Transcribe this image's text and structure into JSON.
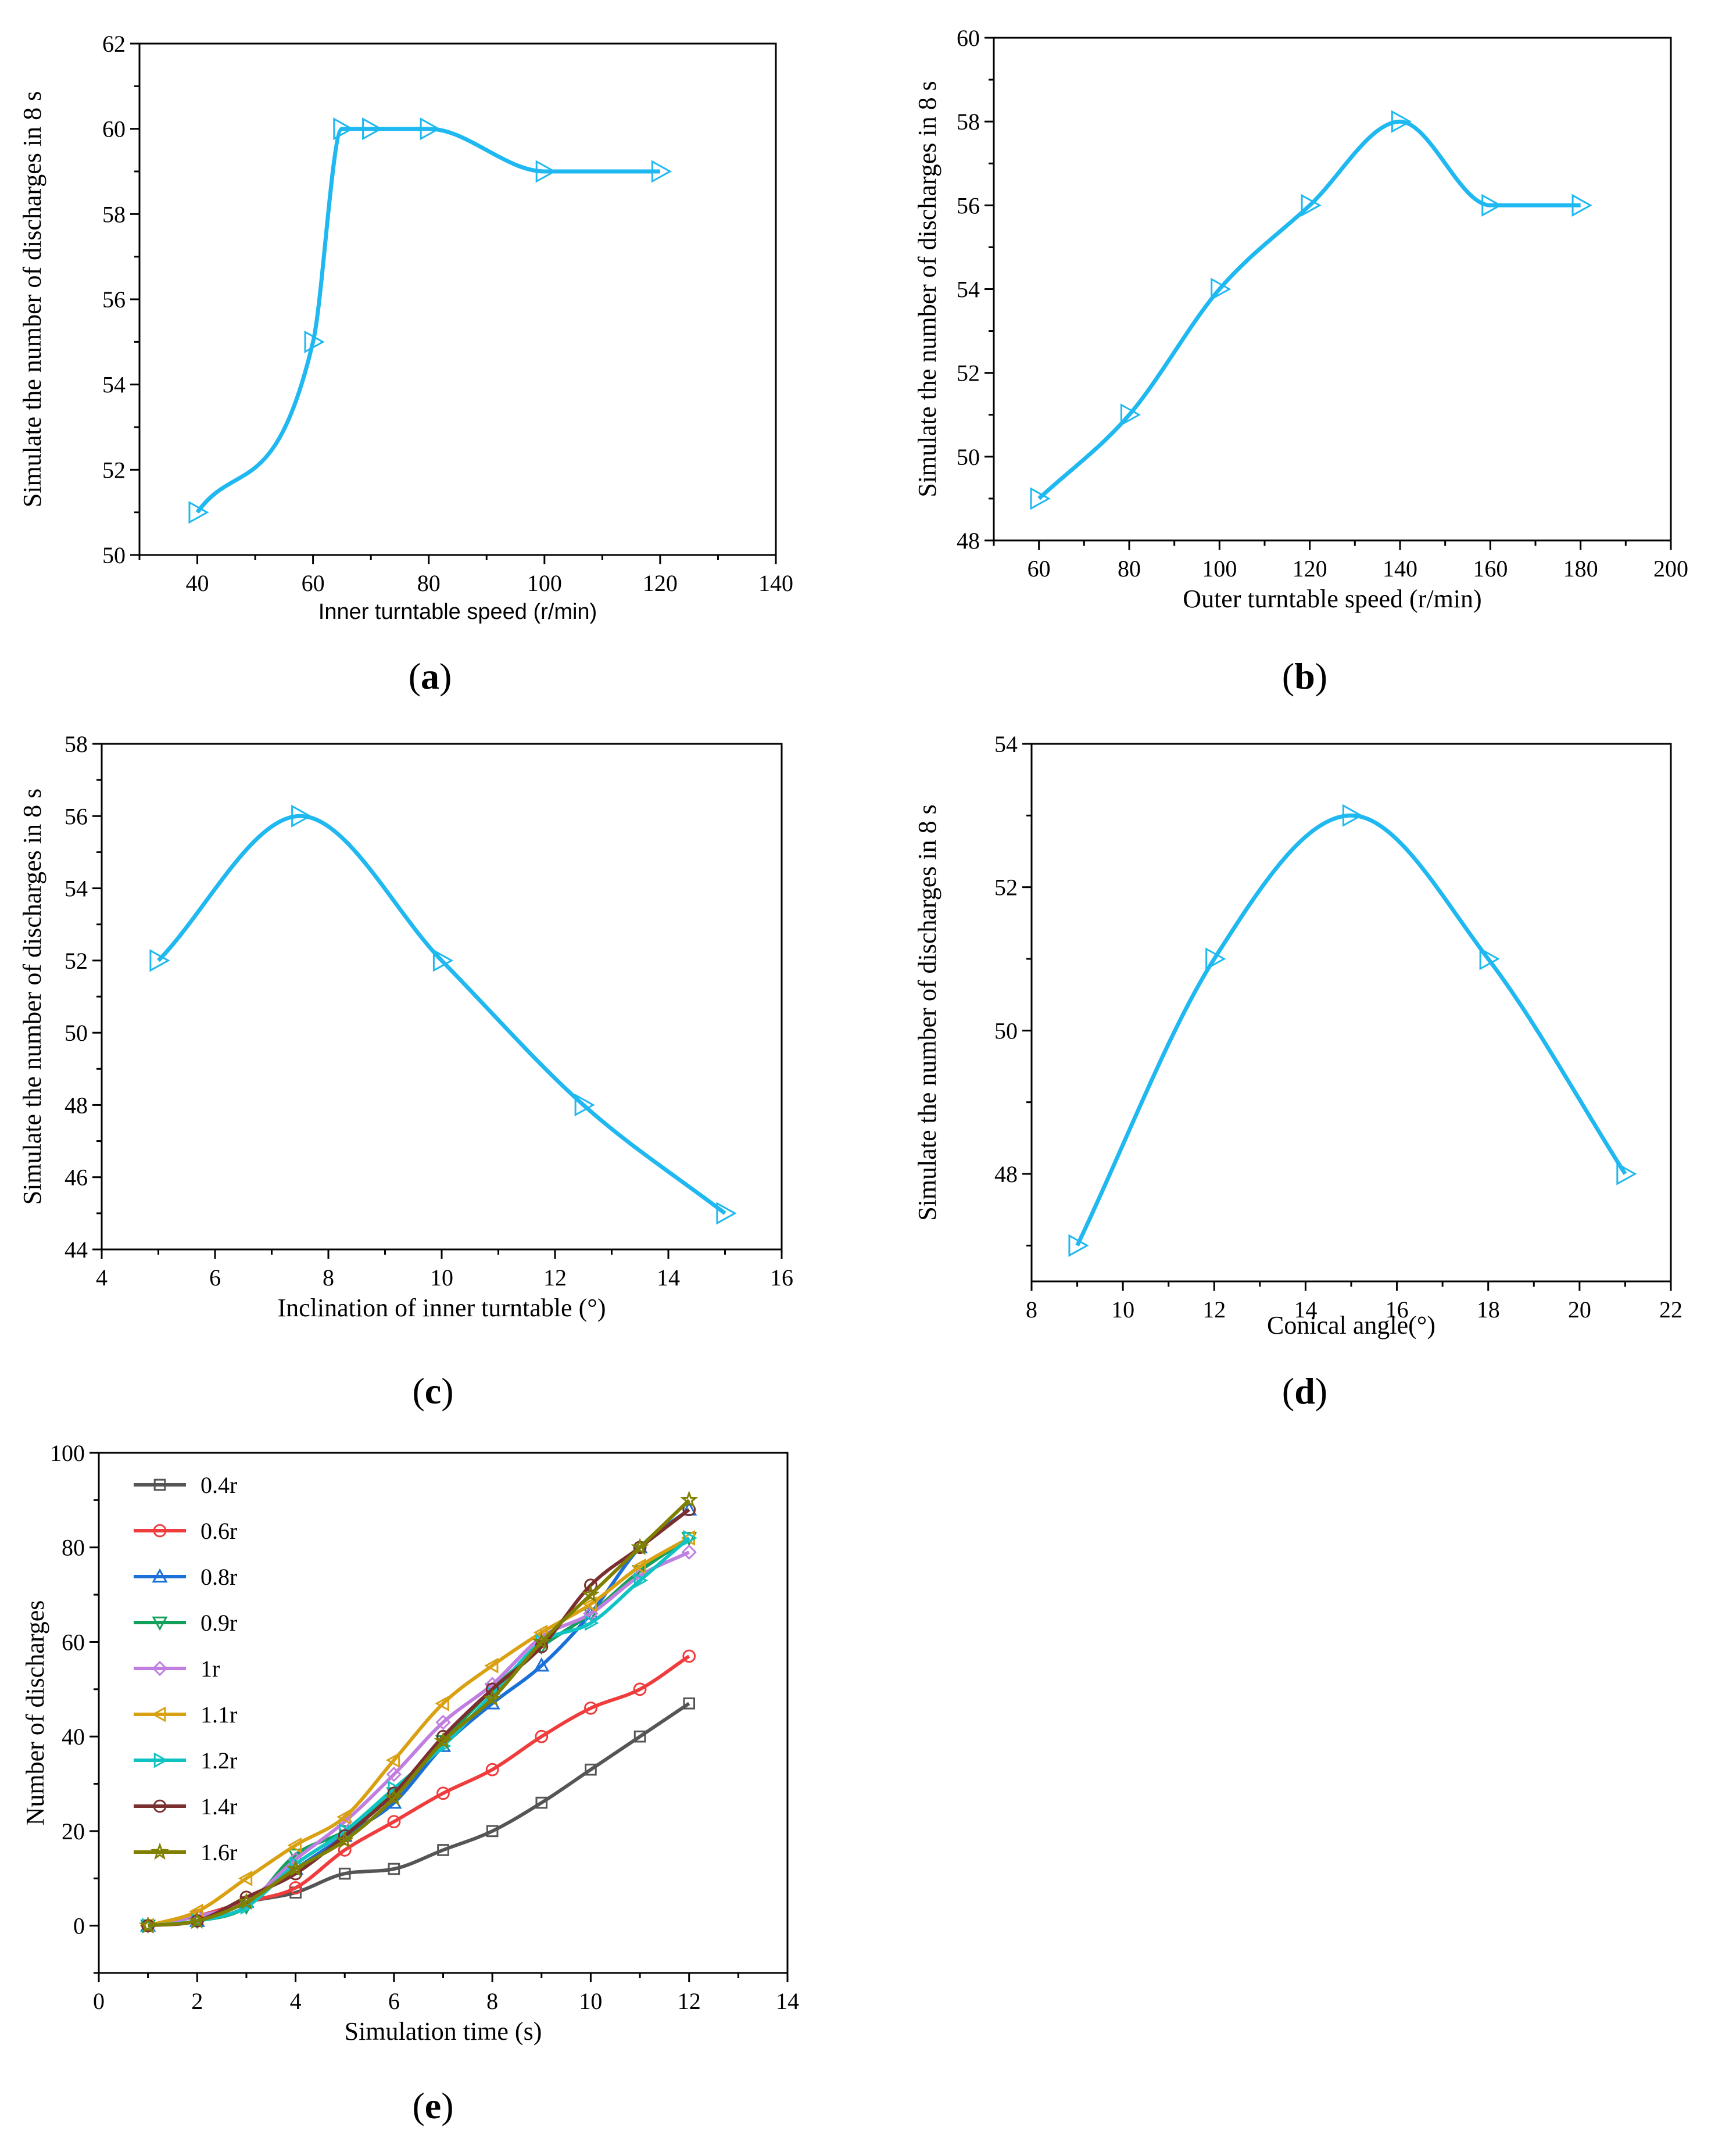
{
  "chart_data": [
    {
      "id": "a",
      "type": "line",
      "panel_label": "a",
      "xlabel": "Inner turntable speed (r/min)",
      "ylabel": "Simulate the number of discharges in 8 s",
      "xlim": [
        30,
        140
      ],
      "ylim": [
        50,
        62
      ],
      "xticks": [
        40,
        60,
        80,
        100,
        120,
        140
      ],
      "yticks": [
        50,
        52,
        54,
        56,
        58,
        60,
        62
      ],
      "grid": false,
      "color": "#1fb8f0",
      "marker": "triangle-right",
      "x": [
        40,
        60,
        65,
        70,
        80,
        100,
        120
      ],
      "y": [
        51,
        55,
        60,
        60,
        60,
        59,
        59
      ]
    },
    {
      "id": "b",
      "type": "line",
      "panel_label": "b",
      "xlabel": "Outer turntable speed (r/min)",
      "ylabel": "Simulate the number of discharges in 8 s",
      "xlim": [
        50,
        200
      ],
      "ylim": [
        48,
        60
      ],
      "xticks": [
        60,
        80,
        100,
        120,
        140,
        160,
        180,
        200
      ],
      "yticks": [
        48,
        50,
        52,
        54,
        56,
        58,
        60
      ],
      "grid": false,
      "color": "#1fb8f0",
      "marker": "triangle-right",
      "x": [
        60,
        80,
        100,
        120,
        140,
        160,
        180
      ],
      "y": [
        49,
        51,
        54,
        56,
        58,
        56,
        56
      ]
    },
    {
      "id": "c",
      "type": "line",
      "panel_label": "c",
      "xlabel": "Inclination of inner turntable (°)",
      "ylabel": "Simulate the number of discharges in 8 s",
      "xlim": [
        4,
        16
      ],
      "ylim": [
        44,
        58
      ],
      "xticks": [
        4,
        6,
        8,
        10,
        12,
        14,
        16
      ],
      "yticks": [
        44,
        46,
        48,
        50,
        52,
        54,
        56,
        58
      ],
      "grid": false,
      "color": "#1fb8f0",
      "marker": "triangle-right",
      "x": [
        5,
        7.5,
        10,
        12.5,
        15
      ],
      "y": [
        52,
        56,
        52,
        48,
        45
      ]
    },
    {
      "id": "d",
      "type": "line",
      "panel_label": "d",
      "xlabel": "Conical angle(°)",
      "ylabel": "Simulate the number of discharges in 8 s",
      "xlim": [
        8,
        22
      ],
      "ylim": [
        46.5,
        54
      ],
      "xticks": [
        8,
        10,
        12,
        14,
        16,
        18,
        20,
        22
      ],
      "yticks": [
        48,
        50,
        52,
        54
      ],
      "grid": false,
      "color": "#1fb8f0",
      "marker": "triangle-right",
      "x": [
        9,
        12,
        15,
        18,
        21
      ],
      "y": [
        47,
        51,
        53,
        51,
        48
      ]
    },
    {
      "id": "e",
      "type": "line",
      "panel_label": "e",
      "xlabel": "Simulation time (s)",
      "ylabel": "Number of discharges",
      "xlim": [
        0,
        14
      ],
      "ylim": [
        -10,
        100
      ],
      "xticks": [
        0,
        2,
        4,
        6,
        8,
        10,
        12,
        14
      ],
      "yticks": [
        0,
        20,
        40,
        60,
        80,
        100
      ],
      "grid": false,
      "legend": "top-left",
      "x": [
        1,
        2,
        3,
        4,
        5,
        6,
        7,
        8,
        9,
        10,
        11,
        12
      ],
      "series": [
        {
          "name": "0.4r",
          "color": "#555555",
          "marker": "square",
          "values": [
            0,
            2,
            5,
            7,
            11,
            12,
            16,
            20,
            26,
            33,
            40,
            47
          ]
        },
        {
          "name": "0.6r",
          "color": "#f03c3c",
          "marker": "circle",
          "values": [
            0,
            2,
            5,
            8,
            16,
            22,
            28,
            33,
            40,
            46,
            50,
            57
          ]
        },
        {
          "name": "0.8r",
          "color": "#1a6fd8",
          "marker": "triangle-up",
          "values": [
            0,
            1,
            5,
            12,
            19,
            26,
            38,
            47,
            55,
            66,
            80,
            88
          ]
        },
        {
          "name": "0.9r",
          "color": "#13a05a",
          "marker": "triangle-down",
          "values": [
            0,
            1,
            4,
            15,
            20,
            28,
            39,
            50,
            59,
            66,
            75,
            82
          ]
        },
        {
          "name": "1r",
          "color": "#c07ee0",
          "marker": "diamond",
          "values": [
            0,
            2,
            5,
            14,
            22,
            32,
            43,
            51,
            61,
            66,
            74,
            79
          ]
        },
        {
          "name": "1.1r",
          "color": "#d9a011",
          "marker": "triangle-left",
          "values": [
            0,
            3,
            10,
            17,
            23,
            35,
            47,
            55,
            62,
            68,
            76,
            82
          ]
        },
        {
          "name": "1.2r",
          "color": "#10c3c3",
          "marker": "triangle-right",
          "values": [
            0,
            1,
            4,
            13,
            20,
            29,
            38,
            49,
            60,
            64,
            73,
            82
          ]
        },
        {
          "name": "1.4r",
          "color": "#7a2e2e",
          "marker": "circle",
          "values": [
            0,
            1,
            6,
            11,
            19,
            28,
            40,
            50,
            59,
            72,
            80,
            88
          ]
        },
        {
          "name": "1.6r",
          "color": "#808000",
          "marker": "star",
          "values": [
            0,
            1,
            5,
            12,
            18,
            27,
            39,
            48,
            60,
            70,
            80,
            90
          ]
        }
      ]
    }
  ]
}
